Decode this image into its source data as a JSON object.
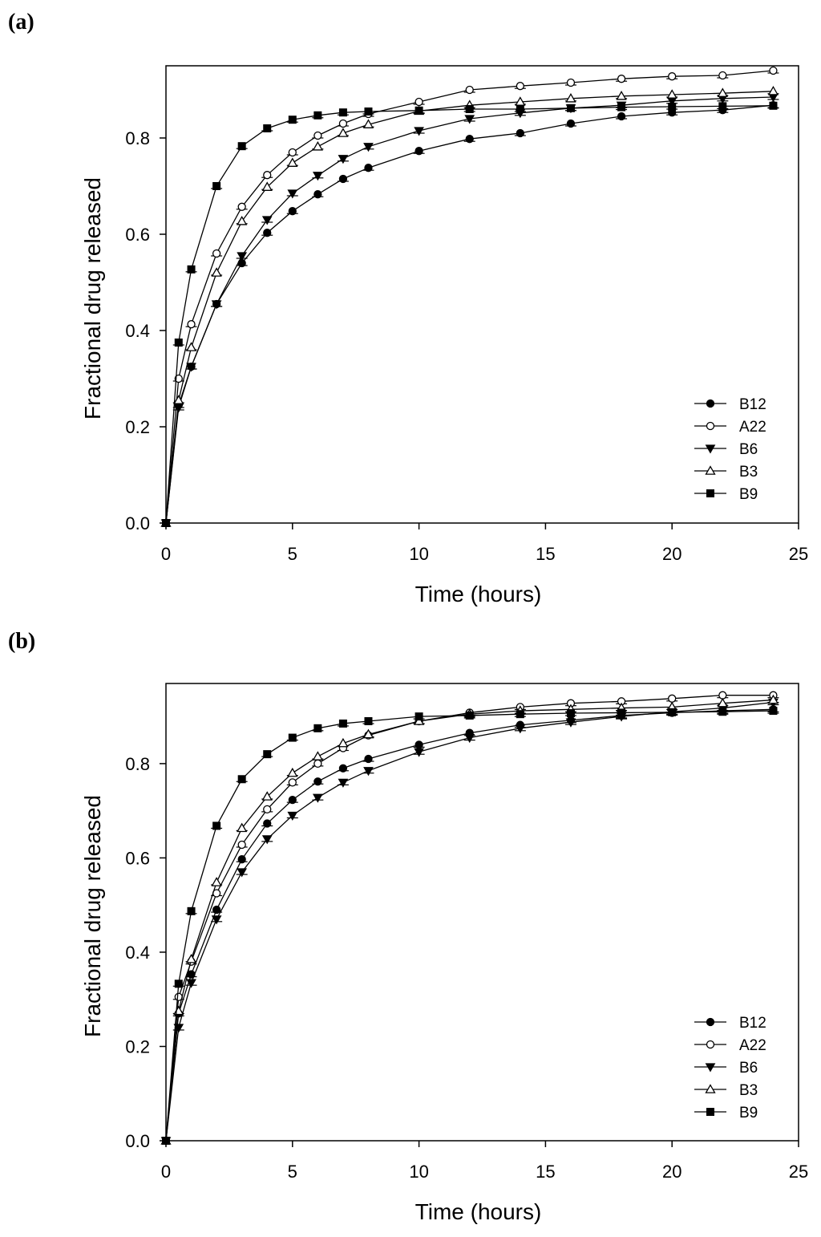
{
  "chart_data": [
    {
      "type": "line",
      "panel_label": "(a)",
      "xlabel": "Time (hours)",
      "ylabel": "Fractional drug released",
      "xlim": [
        0,
        25
      ],
      "ylim": [
        0,
        0.95
      ],
      "xticks": [
        "0",
        "5",
        "10",
        "15",
        "20",
        "25"
      ],
      "yticks": [
        "0.0",
        "0.2",
        "0.4",
        "0.6",
        "0.8"
      ],
      "grid": false,
      "legend_position": "lower-right",
      "x": [
        0,
        0.5,
        1,
        2,
        3,
        4,
        5,
        6,
        7,
        8,
        10,
        12,
        14,
        16,
        18,
        20,
        22,
        24
      ],
      "series": [
        {
          "name": "B12",
          "marker": "filled-circle",
          "values": [
            0,
            0.245,
            0.325,
            0.455,
            0.54,
            0.603,
            0.648,
            0.683,
            0.715,
            0.738,
            0.773,
            0.798,
            0.81,
            0.83,
            0.845,
            0.853,
            0.858,
            0.868
          ]
        },
        {
          "name": "A22",
          "marker": "open-circle",
          "values": [
            0,
            0.3,
            0.413,
            0.56,
            0.657,
            0.723,
            0.77,
            0.805,
            0.83,
            0.85,
            0.875,
            0.9,
            0.908,
            0.915,
            0.923,
            0.928,
            0.93,
            0.94
          ]
        },
        {
          "name": "B6",
          "marker": "filled-triangle-down",
          "values": [
            0,
            0.24,
            0.325,
            0.455,
            0.555,
            0.63,
            0.685,
            0.722,
            0.757,
            0.782,
            0.815,
            0.84,
            0.852,
            0.862,
            0.868,
            0.877,
            0.882,
            0.885
          ]
        },
        {
          "name": "B3",
          "marker": "open-triangle-up",
          "values": [
            0,
            0.255,
            0.365,
            0.52,
            0.627,
            0.698,
            0.748,
            0.782,
            0.81,
            0.828,
            0.856,
            0.868,
            0.875,
            0.882,
            0.887,
            0.89,
            0.893,
            0.897
          ]
        },
        {
          "name": "B9",
          "marker": "filled-square",
          "values": [
            0,
            0.375,
            0.527,
            0.7,
            0.783,
            0.82,
            0.838,
            0.847,
            0.853,
            0.855,
            0.857,
            0.86,
            0.86,
            0.862,
            0.864,
            0.865,
            0.866,
            0.867
          ]
        }
      ]
    },
    {
      "type": "line",
      "panel_label": "(b)",
      "xlabel": "Time (hours)",
      "ylabel": "Fractional drug released",
      "xlim": [
        0,
        25
      ],
      "ylim": [
        0,
        0.97
      ],
      "xticks": [
        "0",
        "5",
        "10",
        "15",
        "20",
        "25"
      ],
      "yticks": [
        "0.0",
        "0.2",
        "0.4",
        "0.6",
        "0.8"
      ],
      "grid": false,
      "legend_position": "lower-right",
      "x": [
        0,
        0.5,
        1,
        2,
        3,
        4,
        5,
        6,
        7,
        8,
        10,
        12,
        14,
        16,
        18,
        20,
        22,
        24
      ],
      "series": [
        {
          "name": "B12",
          "marker": "filled-circle",
          "values": [
            0,
            0.27,
            0.353,
            0.49,
            0.597,
            0.673,
            0.723,
            0.762,
            0.79,
            0.81,
            0.84,
            0.865,
            0.882,
            0.892,
            0.902,
            0.908,
            0.912,
            0.915
          ]
        },
        {
          "name": "A22",
          "marker": "open-circle",
          "values": [
            0,
            0.305,
            0.38,
            0.525,
            0.628,
            0.703,
            0.76,
            0.8,
            0.833,
            0.86,
            0.89,
            0.908,
            0.92,
            0.928,
            0.932,
            0.938,
            0.945,
            0.945
          ]
        },
        {
          "name": "B6",
          "marker": "filled-triangle-down",
          "values": [
            0,
            0.24,
            0.335,
            0.47,
            0.57,
            0.64,
            0.69,
            0.728,
            0.76,
            0.785,
            0.825,
            0.855,
            0.875,
            0.888,
            0.9,
            0.91,
            0.918,
            0.93
          ]
        },
        {
          "name": "B3",
          "marker": "open-triangle-up",
          "values": [
            0,
            0.275,
            0.385,
            0.548,
            0.663,
            0.73,
            0.78,
            0.815,
            0.843,
            0.862,
            0.89,
            0.905,
            0.912,
            0.915,
            0.918,
            0.92,
            0.928,
            0.935
          ]
        },
        {
          "name": "B9",
          "marker": "filled-square",
          "values": [
            0,
            0.333,
            0.487,
            0.668,
            0.767,
            0.82,
            0.855,
            0.875,
            0.885,
            0.89,
            0.9,
            0.902,
            0.905,
            0.907,
            0.908,
            0.909,
            0.91,
            0.912
          ]
        }
      ]
    }
  ]
}
